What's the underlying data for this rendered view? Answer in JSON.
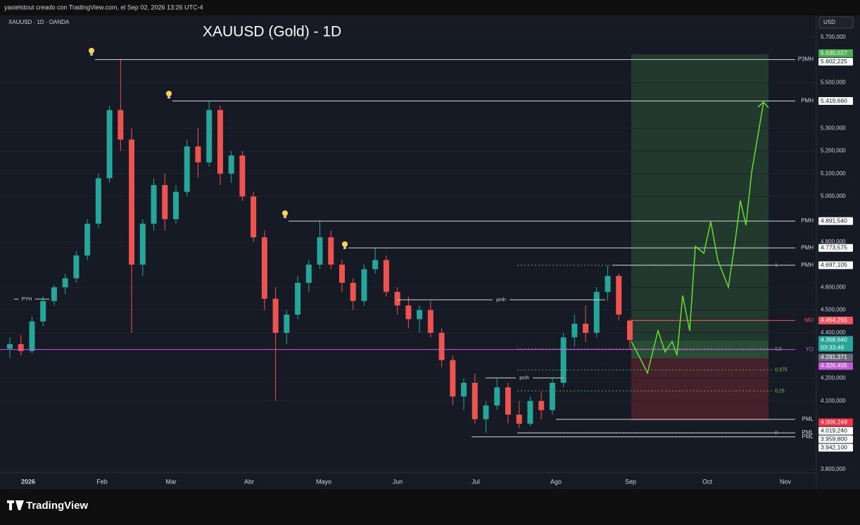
{
  "header": {
    "attribution": "yasielstout creado con TradingView.com, el Sep 02, 2026 13:26 UTC-4"
  },
  "symbol": "XAUUSD · 1D · OANDA",
  "title": "XAUUSD (Gold) - 1D",
  "currency": "USD",
  "price_ticks": [
    {
      "value": 5700,
      "label": "5.700,000"
    },
    {
      "value": 5500,
      "label": "5.500,000"
    },
    {
      "value": 5300,
      "label": "5.300,000"
    },
    {
      "value": 5200,
      "label": "5.200,000"
    },
    {
      "value": 5100,
      "label": "5.100,000"
    },
    {
      "value": 5000,
      "label": "5.000,000"
    },
    {
      "value": 4800,
      "label": "4.800,000"
    },
    {
      "value": 4600,
      "label": "4.600,000"
    },
    {
      "value": 4500,
      "label": "4.500,000"
    },
    {
      "value": 4400,
      "label": "4.400,000"
    },
    {
      "value": 4200,
      "label": "4.200,000"
    },
    {
      "value": 4100,
      "label": "4.100,000"
    },
    {
      "value": 3800,
      "label": "3.800,000"
    }
  ],
  "months": [
    "2026",
    "Feb",
    "Mar",
    "Abr",
    "Mayo",
    "Jun",
    "Jul",
    "Ago",
    "Sep",
    "Oct",
    "Nov"
  ],
  "levels": [
    {
      "name": "P3MH",
      "price": {
        "value": 5602.225,
        "label": "5.602,225"
      }
    },
    {
      "name": "PMH",
      "price": {
        "value": 5419.66,
        "label": "5.419,660"
      }
    },
    {
      "name": "PMH",
      "price": {
        "value": 4891.54,
        "label": "4.891,540"
      }
    },
    {
      "name": "PMH",
      "price": {
        "value": 4773.575,
        "label": "4.773,575"
      }
    },
    {
      "name": "PMH",
      "price": {
        "value": 4697.105,
        "label": "4.697,105"
      }
    },
    {
      "name": "MO",
      "price": {
        "value": 4454.255,
        "label": "4.454,255"
      },
      "color": "#f7525f"
    },
    {
      "name": "YO",
      "price": {
        "value": 4326.405,
        "label": "4.326,405"
      },
      "color": "#c15ad6"
    },
    {
      "name": "PML",
      "price": {
        "value": 4019.24,
        "label": "4.019,240"
      }
    },
    {
      "name": "PML",
      "price": {
        "value": 3959.8,
        "label": "3.959,800"
      }
    },
    {
      "name": "PML",
      "price": {
        "value": 3942.1,
        "label": "3.942,100"
      }
    }
  ],
  "badges": [
    {
      "price": {
        "value": 5630.027,
        "label": "5.630,027"
      },
      "color": "#4caf50"
    },
    {
      "price": {
        "value": 4368.64,
        "label": "4.368,640"
      },
      "countdown": "03:33:49",
      "color": "#26a69a"
    },
    {
      "price": {
        "value": 4291.371,
        "label": "4.291,371"
      },
      "color": "#6a6d78"
    },
    {
      "price": {
        "value": 4006.249,
        "label": "4.006,249"
      },
      "color": "#f23645"
    }
  ],
  "fib": [
    {
      "value": 1,
      "label": "1"
    },
    {
      "value": 0.5,
      "label": "0,5"
    },
    {
      "value": 0.375,
      "label": "0,375"
    },
    {
      "value": 0.25,
      "label": "0,25"
    },
    {
      "value": 0,
      "label": "0"
    }
  ],
  "marks": [
    "PYH",
    "pmh",
    "pmh"
  ],
  "candles": [
    [
      4330,
      4380,
      4290,
      4350
    ],
    [
      4350,
      4390,
      4300,
      4320
    ],
    [
      4320,
      4470,
      4310,
      4450
    ],
    [
      4450,
      4560,
      4430,
      4540
    ],
    [
      4540,
      4610,
      4520,
      4600
    ],
    [
      4600,
      4660,
      4570,
      4640
    ],
    [
      4640,
      4760,
      4620,
      4740
    ],
    [
      4740,
      4900,
      4720,
      4880
    ],
    [
      4880,
      5100,
      4860,
      5080
    ],
    [
      5080,
      5400,
      5060,
      5380
    ],
    [
      5380,
      5602,
      5200,
      5250
    ],
    [
      5250,
      5300,
      4400,
      4700
    ],
    [
      4700,
      4900,
      4650,
      4880
    ],
    [
      4880,
      5080,
      4850,
      5050
    ],
    [
      5050,
      5100,
      4850,
      4900
    ],
    [
      4900,
      5050,
      4880,
      5020
    ],
    [
      5020,
      5250,
      5000,
      5220
    ],
    [
      5220,
      5300,
      5080,
      5150
    ],
    [
      5150,
      5419,
      5130,
      5380
    ],
    [
      5380,
      5400,
      5050,
      5100
    ],
    [
      5100,
      5200,
      5060,
      5180
    ],
    [
      5180,
      5200,
      4980,
      5000
    ],
    [
      5000,
      5020,
      4800,
      4820
    ],
    [
      4820,
      4850,
      4500,
      4550
    ],
    [
      4550,
      4600,
      4100,
      4400
    ],
    [
      4400,
      4500,
      4350,
      4480
    ],
    [
      4480,
      4650,
      4460,
      4620
    ],
    [
      4620,
      4720,
      4580,
      4700
    ],
    [
      4700,
      4891,
      4680,
      4820
    ],
    [
      4820,
      4850,
      4680,
      4700
    ],
    [
      4700,
      4720,
      4580,
      4620
    ],
    [
      4620,
      4640,
      4500,
      4540
    ],
    [
      4540,
      4700,
      4520,
      4680
    ],
    [
      4680,
      4773,
      4660,
      4720
    ],
    [
      4720,
      4740,
      4560,
      4580
    ],
    [
      4580,
      4600,
      4480,
      4520
    ],
    [
      4520,
      4560,
      4420,
      4460
    ],
    [
      4460,
      4520,
      4400,
      4500
    ],
    [
      4500,
      4540,
      4380,
      4400
    ],
    [
      4400,
      4420,
      4250,
      4280
    ],
    [
      4280,
      4300,
      4080,
      4120
    ],
    [
      4120,
      4200,
      4060,
      4180
    ],
    [
      4180,
      4220,
      4000,
      4020
    ],
    [
      4020,
      4100,
      3960,
      4080
    ],
    [
      4080,
      4200,
      4060,
      4160
    ],
    [
      4160,
      4180,
      4000,
      4040
    ],
    [
      4040,
      4100,
      3980,
      4000
    ],
    [
      4000,
      4120,
      3990,
      4100
    ],
    [
      4100,
      4140,
      4020,
      4060
    ],
    [
      4060,
      4200,
      4040,
      4180
    ],
    [
      4180,
      4400,
      4160,
      4380
    ],
    [
      4380,
      4480,
      4340,
      4440
    ],
    [
      4440,
      4520,
      4360,
      4400
    ],
    [
      4400,
      4600,
      4380,
      4580
    ],
    [
      4580,
      4697,
      4540,
      4650
    ],
    [
      4650,
      4660,
      4454,
      4480
    ],
    [
      4454,
      4460,
      4330,
      4368
    ]
  ],
  "footer": {
    "brand": "TradingView"
  }
}
